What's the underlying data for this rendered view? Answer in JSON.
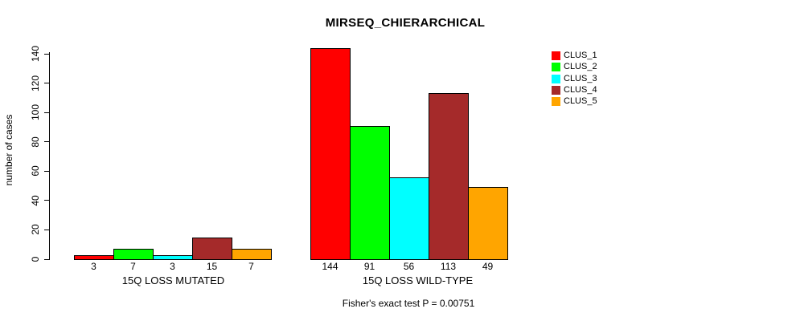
{
  "chart_data": {
    "type": "bar",
    "title": "MIRSEQ_CHIERARCHICAL",
    "xlabel": "",
    "ylabel": "number of cases",
    "ylim": [
      0,
      140
    ],
    "yticks": [
      0,
      20,
      40,
      60,
      80,
      100,
      120,
      140
    ],
    "grid": false,
    "legend_position": "top-right",
    "categories": [
      "15Q LOSS MUTATED",
      "15Q LOSS WILD-TYPE"
    ],
    "series": [
      {
        "name": "CLUS_1",
        "color": "#FF0000",
        "values": [
          3,
          144
        ]
      },
      {
        "name": "CLUS_2",
        "color": "#00FF00",
        "values": [
          7,
          91
        ]
      },
      {
        "name": "CLUS_3",
        "color": "#00FFFF",
        "values": [
          3,
          56
        ]
      },
      {
        "name": "CLUS_4",
        "color": "#A52A2A",
        "values": [
          15,
          113
        ]
      },
      {
        "name": "CLUS_5",
        "color": "#FFA500",
        "values": [
          7,
          49
        ]
      }
    ],
    "bar_value_labels": [
      [
        "3",
        "7",
        "3",
        "15",
        "7"
      ],
      [
        "144",
        "91",
        "56",
        "113",
        "49"
      ]
    ],
    "annotation": "Fisher's exact test P = 0.00751"
  },
  "legend": {
    "items": [
      {
        "label": "CLUS_1",
        "color": "#FF0000"
      },
      {
        "label": "CLUS_2",
        "color": "#00FF00"
      },
      {
        "label": "CLUS_3",
        "color": "#00FFFF"
      },
      {
        "label": "CLUS_4",
        "color": "#A52A2A"
      },
      {
        "label": "CLUS_5",
        "color": "#FFA500"
      }
    ]
  }
}
